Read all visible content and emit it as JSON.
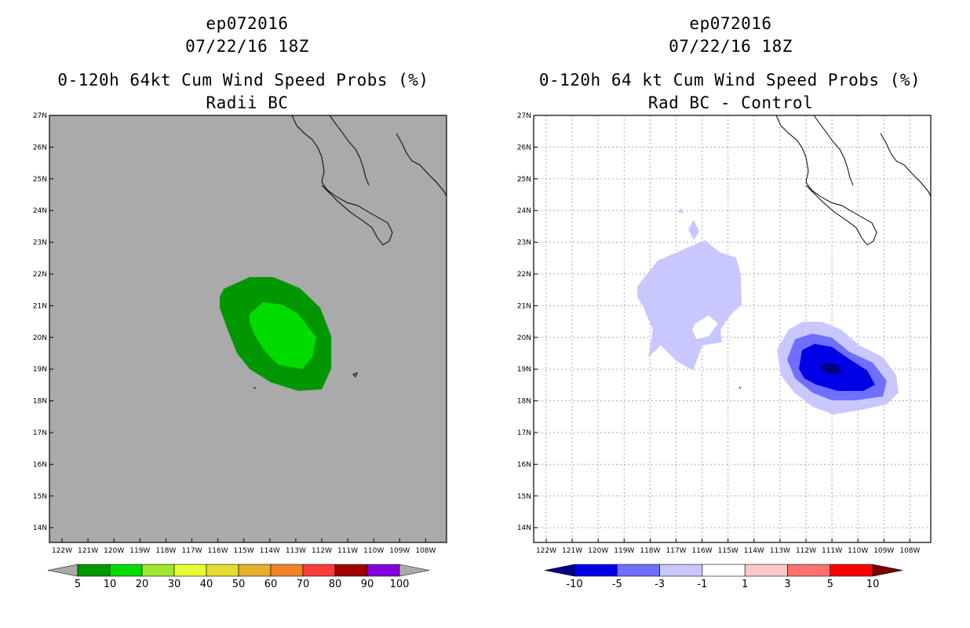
{
  "panels": [
    {
      "storm_id": "ep072016",
      "datetime": "07/22/16 18Z",
      "title": "0-120h 64kt Cum Wind Speed Probs (%)",
      "subtitle": "Radii BC",
      "background": "#aaaaaa",
      "colorbar": {
        "labels": [
          "5",
          "10",
          "20",
          "30",
          "40",
          "50",
          "60",
          "70",
          "80",
          "90",
          "100"
        ],
        "colors": [
          "#009600",
          "#00dc00",
          "#a0e632",
          "#e6ff32",
          "#e6dc32",
          "#e6af2d",
          "#f08228",
          "#fa3c3c",
          "#a00000",
          "#8200dc"
        ],
        "end_color": "#aaaaaa"
      }
    },
    {
      "storm_id": "ep072016",
      "datetime": "07/22/16 18Z",
      "title": "0-120h 64 kt Cum Wind Speed Probs (%)",
      "subtitle": "Rad BC - Control",
      "background": "#ffffff",
      "colorbar": {
        "labels": [
          "-10",
          "-5",
          "-3",
          "-1",
          "1",
          "3",
          "5",
          "10"
        ],
        "colors": [
          "#0000e6",
          "#6e6eff",
          "#c8c8ff",
          "#ffffff",
          "#ffc8c8",
          "#ff7070",
          "#ff0000"
        ],
        "low_end_color": "#000082",
        "high_end_color": "#780000"
      }
    }
  ],
  "axes": {
    "lat_labels": [
      "27N",
      "26N",
      "25N",
      "24N",
      "23N",
      "22N",
      "21N",
      "20N",
      "19N",
      "18N",
      "17N",
      "16N",
      "15N",
      "14N"
    ],
    "lon_labels": [
      "122W",
      "121W",
      "120W",
      "119W",
      "118W",
      "117W",
      "116W",
      "115W",
      "114W",
      "113W",
      "112W",
      "111W",
      "110W",
      "109W",
      "108W"
    ]
  }
}
